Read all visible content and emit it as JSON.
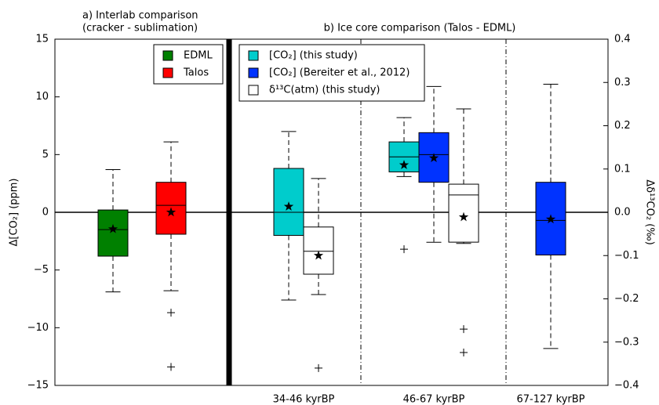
{
  "chart_data": [
    {
      "type": "box",
      "title": [
        "a) Interlab comparison",
        "(cracker - sublimation)"
      ],
      "ylabel": "Δ[CO₂] (ppm)",
      "ylim": [
        -15,
        15
      ],
      "yticks": [
        {
          "value": -15,
          "label": "−15"
        },
        {
          "value": -10,
          "label": "−10"
        },
        {
          "value": -5,
          "label": "−5"
        },
        0,
        5,
        10,
        15
      ],
      "legend": "upper right",
      "series": [
        {
          "name": "EDML",
          "color": "#008000",
          "boxes": [
            {
              "whislo": -6.9,
              "q1": -3.8,
              "med": -1.5,
              "q3": 0.2,
              "whishi": 3.7,
              "mean": -1.45
            }
          ]
        },
        {
          "name": "Talos",
          "color": "#ff0000",
          "boxes": [
            {
              "whislo": -6.8,
              "q1": -1.9,
              "med": 0.6,
              "q3": 2.6,
              "whishi": 6.1,
              "mean": 0.0,
              "fliers": [
                -8.7,
                -13.4
              ]
            }
          ]
        }
      ]
    },
    {
      "type": "box",
      "title": "b) Ice core comparison (Talos - EDML)",
      "y2label": "Δδ¹³CO₂ (‰)",
      "y2lim": [
        -0.4,
        0.4
      ],
      "y2ticks": [
        {
          "value": -0.4,
          "label": "−0.4"
        },
        {
          "value": -0.3,
          "label": "−0.3"
        },
        {
          "value": -0.2,
          "label": "−0.2"
        },
        {
          "value": -0.1,
          "label": "−0.1"
        },
        {
          "value": 0,
          "label": "0.0"
        },
        0.1,
        0.2,
        0.3,
        0.4
      ],
      "legend": "upper left",
      "categories": [
        "34-46 kyrBP",
        "46-67 kyrBP",
        "67-127 kyrBP"
      ],
      "series": [
        {
          "name": "[CO₂] (this study)",
          "color": "#00cccc",
          "boxes": [
            {
              "whislo": -7.6,
              "q1": -2.0,
              "med": 0.0,
              "q3": 3.8,
              "whishi": 7.0,
              "mean": 0.5
            },
            {
              "whislo": 3.1,
              "q1": 3.5,
              "med": 4.8,
              "q3": 6.1,
              "whishi": 8.2,
              "mean": 4.1,
              "fliers": [
                -3.2
              ]
            },
            null
          ]
        },
        {
          "name": "[CO₂] (Bereiter et al., 2012)",
          "color": "#0033ff",
          "boxes": [
            null,
            {
              "whislo": -2.6,
              "q1": 2.6,
              "med": 5.0,
              "q3": 6.9,
              "whishi": 10.9,
              "mean": 4.7
            },
            {
              "whislo": -11.8,
              "q1": -3.7,
              "med": -0.7,
              "q3": 2.6,
              "whishi": 11.1,
              "mean": -0.6
            }
          ]
        },
        {
          "name": "δ¹³C(atm) (this study)",
          "color": "#ffffff",
          "axis": "y2",
          "boxes": [
            {
              "whislo": -0.19,
              "q1": -0.143,
              "med": -0.09,
              "q3": -0.034,
              "whishi": 0.078,
              "mean": -0.1,
              "fliers": [
                -0.36
              ]
            },
            {
              "whislo": -0.072,
              "q1": -0.069,
              "med": 0.04,
              "q3": 0.065,
              "whishi": 0.239,
              "mean": -0.011,
              "fliers": [
                -0.27,
                -0.324
              ]
            },
            null
          ]
        }
      ]
    }
  ]
}
